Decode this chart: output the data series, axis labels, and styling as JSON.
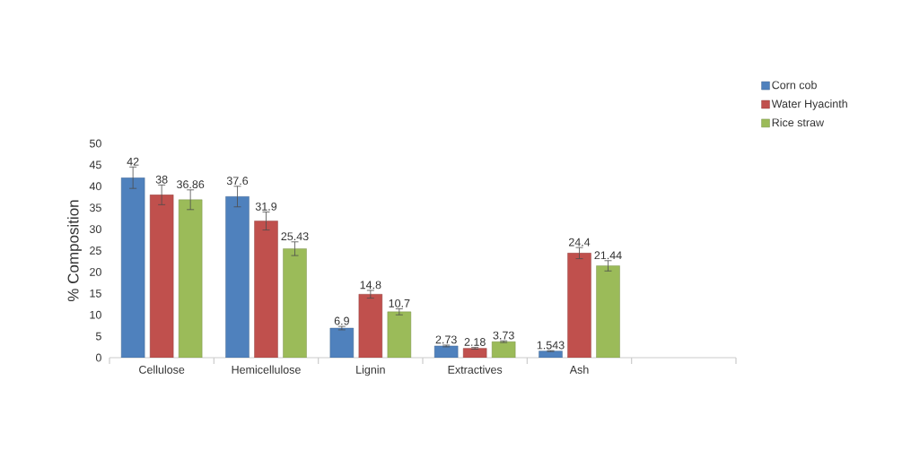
{
  "chart_data": {
    "type": "bar",
    "ylabel": "% Composition",
    "categories": [
      "Cellulose",
      "Hemicellulose",
      "Lignin",
      "Extractives",
      "Ash",
      null
    ],
    "series": [
      {
        "name": "Corn cob",
        "color": "#4f81bd",
        "values": [
          42,
          37.6,
          6.9,
          2.73,
          1.543,
          null
        ],
        "errors": [
          2.5,
          2.4,
          0.4,
          0.2,
          0.1,
          null
        ]
      },
      {
        "name": "Water Hyacinth",
        "color": "#c0504d",
        "values": [
          38,
          31.9,
          14.8,
          2.18,
          24.4,
          null
        ],
        "errors": [
          2.3,
          2.1,
          0.9,
          0.2,
          1.3,
          null
        ]
      },
      {
        "name": "Rice straw",
        "color": "#9bbb59",
        "values": [
          36.86,
          25.43,
          10.7,
          3.73,
          21.44,
          null
        ],
        "errors": [
          2.3,
          1.6,
          0.7,
          0.2,
          1.2,
          null
        ]
      }
    ],
    "ylim": [
      0,
      50
    ],
    "yticks": [
      0,
      5,
      10,
      15,
      20,
      25,
      30,
      35,
      40,
      45,
      50
    ],
    "data_labels": true,
    "legend": "top right",
    "grid": false
  }
}
